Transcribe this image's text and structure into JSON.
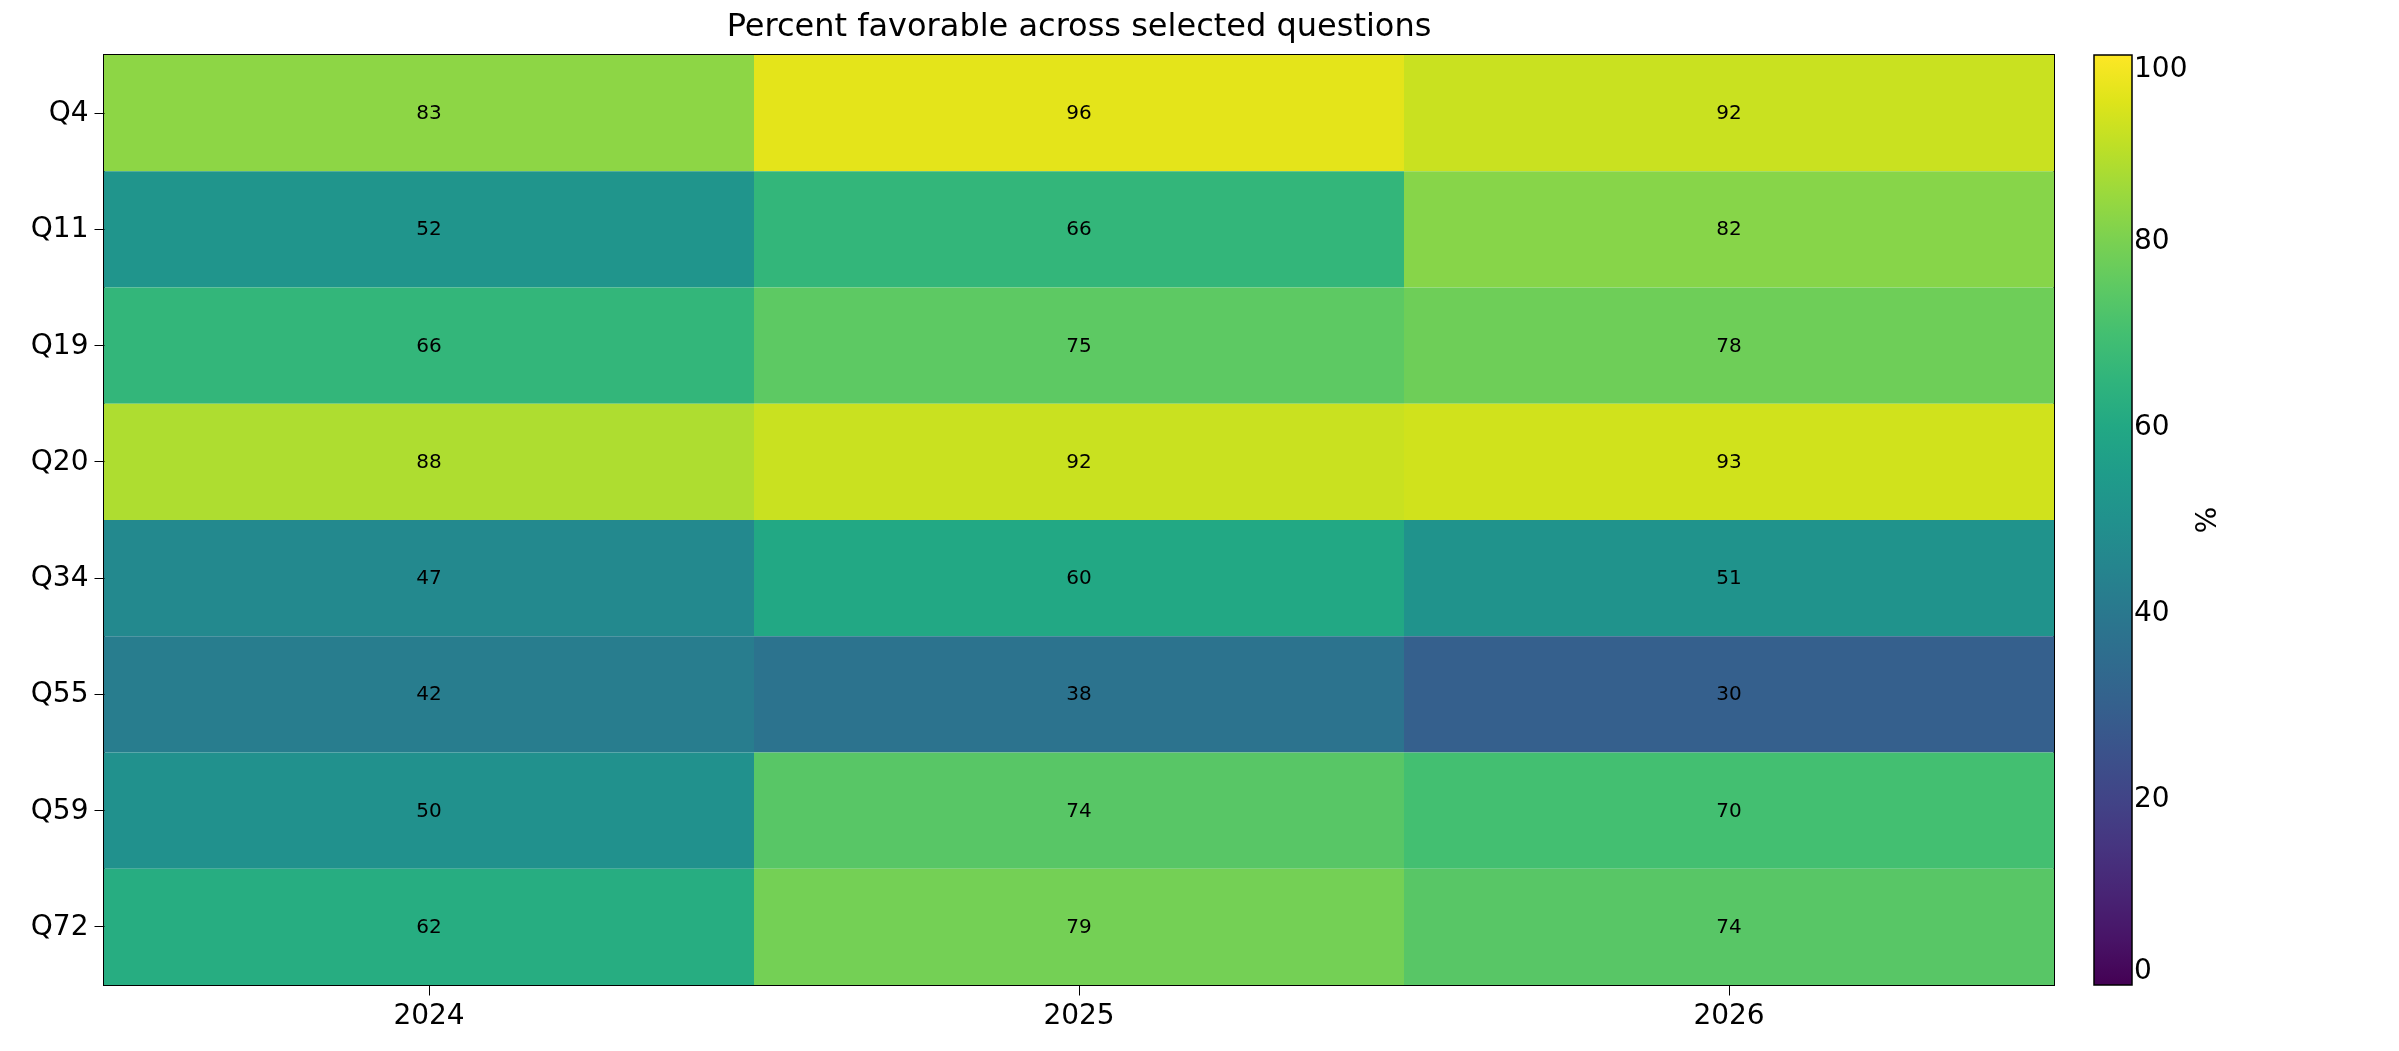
{
  "chart_data": {
    "type": "heatmap",
    "title": "Percent favorable across selected questions",
    "clabel": "%",
    "categories": [
      "2024",
      "2025",
      "2026"
    ],
    "y_categories": [
      "Q4",
      "Q11",
      "Q19",
      "Q20",
      "Q34",
      "Q55",
      "Q59",
      "Q72"
    ],
    "cells": [
      [
        83,
        96,
        92
      ],
      [
        52,
        66,
        82
      ],
      [
        66,
        75,
        78
      ],
      [
        88,
        92,
        93
      ],
      [
        47,
        60,
        51
      ],
      [
        42,
        38,
        30
      ],
      [
        50,
        74,
        70
      ],
      [
        62,
        79,
        74
      ]
    ],
    "clim": [
      0,
      100
    ],
    "cticks": [
      0,
      20,
      40,
      60,
      80,
      100
    ],
    "data_labels": true
  }
}
